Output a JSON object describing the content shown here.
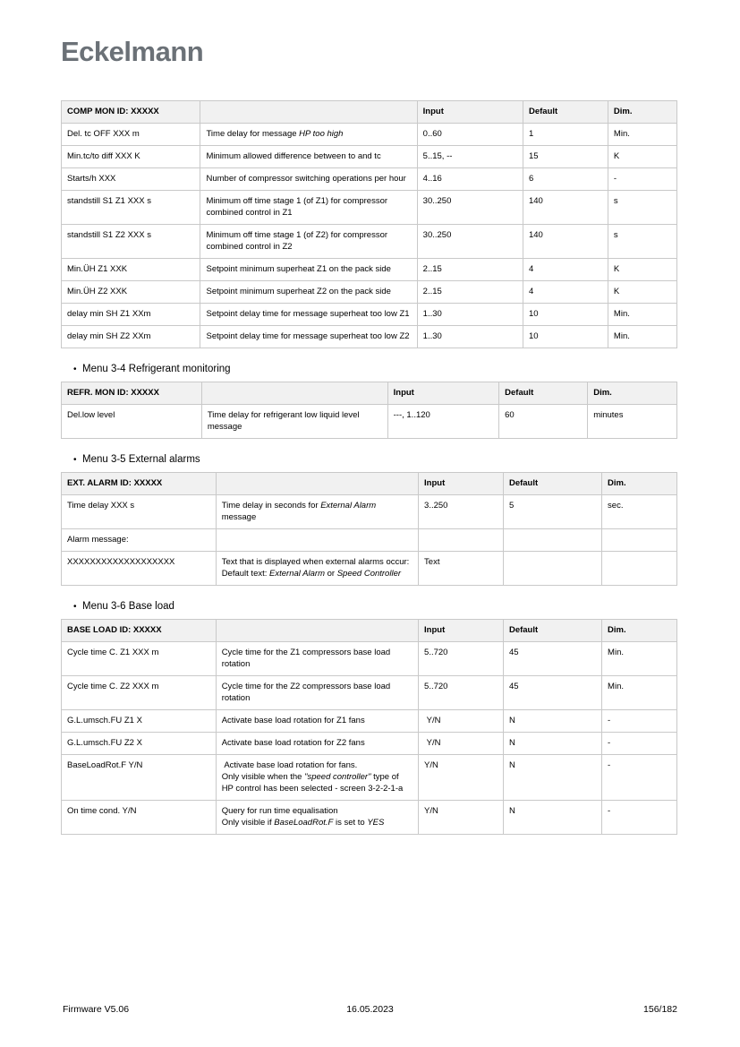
{
  "logo": {
    "text": "Eckelmann"
  },
  "bullet": "•",
  "sections": [
    {
      "title": null,
      "table": {
        "header": [
          "COMP MON ID: XXXXX",
          "",
          "Input",
          "Default",
          "Dim."
        ],
        "rows": [
          [
            "Del. tc OFF XXX m",
            [
              {
                "t": "Time delay for message "
              },
              {
                "t": "HP too high",
                "i": true
              }
            ],
            "0..60",
            "1",
            "Min."
          ],
          [
            "Min.tc/to diff XXX K",
            "Minimum allowed difference between to and tc",
            "5..15, --",
            "15",
            "K"
          ],
          [
            "Starts/h XXX",
            "Number of compressor switching operations per hour",
            "4..16",
            "6",
            "-"
          ],
          [
            "standstill S1 Z1 XXX s",
            "Minimum off time stage 1 (of Z1) for compressor combined control in Z1",
            "30..250",
            "140",
            "s"
          ],
          [
            "standstill S1 Z2 XXX s",
            "Minimum off time stage 1 (of Z2) for compressor combined control in Z2",
            "30..250",
            "140",
            "s"
          ],
          [
            "Min.ÜH Z1 XXK",
            "Setpoint minimum superheat Z1 on the pack side",
            "2..15",
            "4",
            "K"
          ],
          [
            "Min.ÜH Z2 XXK",
            "Setpoint minimum superheat Z2 on the pack side",
            "2..15",
            "4",
            "K"
          ],
          [
            "delay min SH Z1 XXm",
            "Setpoint delay time for message superheat too low Z1",
            "1..30",
            "10",
            "Min."
          ],
          [
            "delay min SH Z2 XXm",
            "Setpoint delay time for message superheat too low Z2",
            "1..30",
            "10",
            "Min."
          ]
        ]
      }
    },
    {
      "title": "Menu 3-4 Refrigerant monitoring",
      "table": {
        "header": [
          "REFR. MON ID: XXXXX",
          "",
          "Input",
          "Default",
          "Dim."
        ],
        "rows": [
          [
            "Del.low level",
            "Time delay for refrigerant low liquid level message",
            "---, 1..120",
            "60",
            "minutes"
          ]
        ]
      }
    },
    {
      "title": "Menu 3-5 External alarms",
      "table": {
        "header": [
          "EXT. ALARM ID: XXXXX",
          "",
          "Input",
          "Default",
          "Dim."
        ],
        "rows": [
          [
            "Time delay XXX s",
            [
              {
                "t": "Time delay in seconds for "
              },
              {
                "t": "External Alarm",
                "i": true
              },
              {
                "t": " message"
              }
            ],
            "3..250",
            "5",
            "sec."
          ],
          [
            "Alarm message:",
            "",
            "",
            "",
            ""
          ],
          [
            "XXXXXXXXXXXXXXXXXXX",
            [
              {
                "t": "Text that is displayed when external alarms occur:\nDefault text: "
              },
              {
                "t": "External Alarm",
                "i": true
              },
              {
                "t": " or "
              },
              {
                "t": "Speed Controller",
                "i": true
              }
            ],
            "Text",
            "",
            ""
          ]
        ]
      }
    },
    {
      "title": "Menu 3-6 Base load",
      "table": {
        "header": [
          "BASE LOAD ID: XXXXX",
          "",
          "Input",
          "Default",
          "Dim."
        ],
        "rows": [
          [
            "Cycle time C. Z1 XXX m",
            "Cycle time for the Z1 compressors base load rotation",
            "5..720",
            "45",
            "Min."
          ],
          [
            "Cycle time C. Z2 XXX m",
            "Cycle time for the Z2 compressors base load rotation",
            "5..720",
            "45",
            "Min."
          ],
          [
            "G.L.umsch.FU Z1 X",
            "Activate base load rotation for Z1 fans",
            " Y/N",
            "N",
            "-"
          ],
          [
            "G.L.umsch.FU Z2 X",
            "Activate base load rotation for Z2 fans",
            " Y/N",
            "N",
            "-"
          ],
          [
            "BaseLoadRot.F Y/N",
            [
              {
                "t": " Activate base load rotation for fans.\nOnly visible when the "
              },
              {
                "t": "\"speed controller\"",
                "i": true
              },
              {
                "t": " type of HP control has been selected - screen 3-2-2-1-a"
              }
            ],
            "Y/N",
            "N",
            "-"
          ],
          [
            "On time cond. Y/N",
            [
              {
                "t": "Query for run time equalisation\nOnly visible if "
              },
              {
                "t": "BaseLoadRot.F",
                "i": true
              },
              {
                "t": " is set to "
              },
              {
                "t": "YES",
                "i": true
              }
            ],
            "Y/N",
            "N",
            "-"
          ]
        ]
      }
    }
  ],
  "footer": {
    "left": "Firmware V5.06",
    "center": "16.05.2023",
    "right": "156/182"
  }
}
